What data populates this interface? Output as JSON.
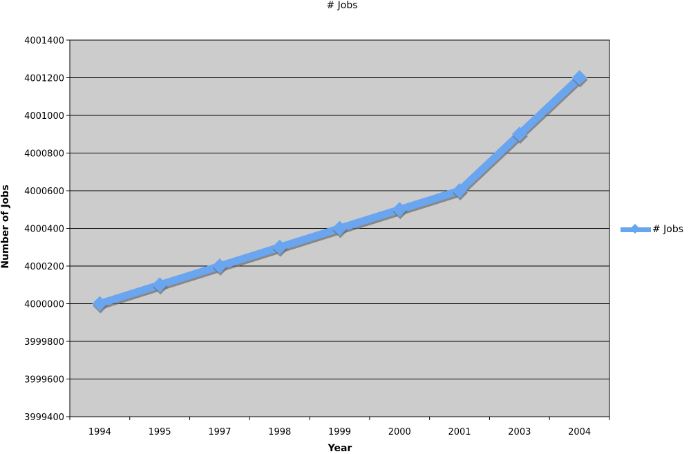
{
  "chart_data": {
    "type": "line",
    "title": "# Jobs",
    "xlabel": "Year",
    "ylabel": "Number of Jobs",
    "categories": [
      "1994",
      "1995",
      "1997",
      "1998",
      "1999",
      "2000",
      "2001",
      "2003",
      "2004"
    ],
    "series": [
      {
        "name": "# Jobs",
        "values": [
          4000000,
          4000100,
          4000200,
          4000300,
          4000400,
          4000500,
          4000600,
          4000900,
          4001200
        ]
      }
    ],
    "ylim": [
      3999400,
      4001400
    ],
    "yticks": [
      "4001400",
      "4001200",
      "4001000",
      "4000800",
      "4000600",
      "4000400",
      "4000200",
      "4000000",
      "3999800",
      "3999600",
      "3999400"
    ],
    "grid": true,
    "legend_position": "right",
    "colors": {
      "series": "#6AA5F0",
      "plot_background": "#CCCCCC",
      "gridline": "#000000"
    }
  }
}
